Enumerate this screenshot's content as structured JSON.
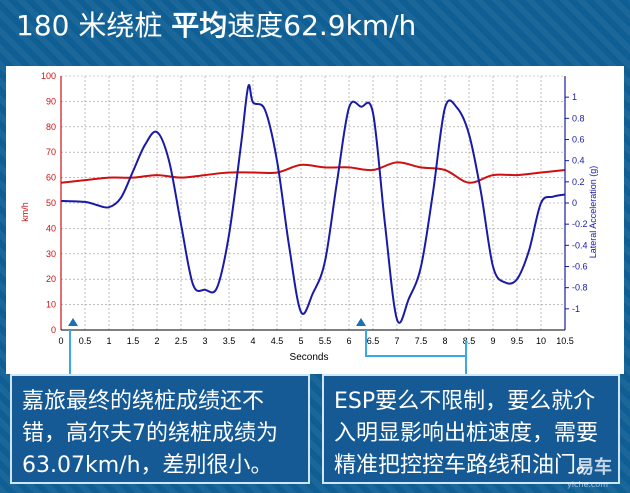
{
  "header": {
    "title_part1": "180 米绕桩 ",
    "title_bold": "平均",
    "title_part2": "速度62.9km/h"
  },
  "chart_data": {
    "type": "line",
    "xlabel": "Seconds",
    "ylabel_left": "km/h",
    "ylabel_right": "Lateral Acceleration (g)",
    "xlim": [
      0,
      10.5
    ],
    "ylim_left": [
      0,
      100
    ],
    "ylim_right": [
      -1.2,
      1.2
    ],
    "x_ticks": [
      "0",
      "0.5",
      "1",
      "1.5",
      "2",
      "2.5",
      "3",
      "3.5",
      "4",
      "4.5",
      "5",
      "5.5",
      "6",
      "6.5",
      "7",
      "7.5",
      "8",
      "8.5",
      "9",
      "9.5",
      "10",
      "10.5"
    ],
    "y_ticks_left": [
      "0",
      "10",
      "20",
      "30",
      "40",
      "50",
      "60",
      "70",
      "80",
      "90",
      "100"
    ],
    "y_ticks_right": [
      "-1",
      "-0.8",
      "-0.6",
      "-0.4",
      "-0.2",
      "0",
      "0.2",
      "0.4",
      "0.6",
      "0.8",
      "1"
    ],
    "grid": true,
    "series": [
      {
        "axis": "left",
        "color": "#cc1111",
        "x": [
          0,
          0.5,
          1,
          1.5,
          2,
          2.5,
          3,
          3.5,
          4,
          4.5,
          5,
          5.5,
          6,
          6.5,
          7,
          7.5,
          8,
          8.5,
          9,
          9.5,
          10,
          10.5
        ],
        "y": [
          58,
          59,
          60,
          60,
          61,
          60,
          61,
          62,
          62,
          62,
          65,
          64,
          64,
          63,
          66,
          64,
          63,
          58,
          61,
          61,
          62,
          63
        ]
      },
      {
        "axis": "right",
        "color": "#1a1aa8",
        "x": [
          0,
          0.5,
          0.75,
          1,
          1.25,
          1.5,
          1.75,
          2,
          2.25,
          2.5,
          2.75,
          3,
          3.25,
          3.5,
          3.75,
          3.9,
          4,
          4.25,
          4.5,
          4.75,
          5,
          5.25,
          5.5,
          5.75,
          6,
          6.25,
          6.5,
          6.75,
          7,
          7.25,
          7.5,
          7.75,
          8,
          8.25,
          8.5,
          8.75,
          9,
          9.25,
          9.5,
          9.75,
          10,
          10.25,
          10.5
        ],
        "y": [
          0.02,
          0.01,
          -0.02,
          -0.04,
          0.05,
          0.3,
          0.55,
          0.67,
          0.4,
          -0.2,
          -0.77,
          -0.82,
          -0.8,
          -0.3,
          0.55,
          1.1,
          0.95,
          0.88,
          0.4,
          -0.4,
          -1.03,
          -0.85,
          -0.55,
          0.2,
          0.9,
          0.91,
          0.85,
          -0.2,
          -1.1,
          -0.9,
          -0.6,
          0.1,
          0.9,
          0.9,
          0.65,
          0.1,
          -0.6,
          -0.75,
          -0.72,
          -0.45,
          0.0,
          0.06,
          0.08
        ]
      }
    ]
  },
  "caption_left": {
    "text": "嘉旅最终的绕桩成绩还不错，高尔夫7的绕桩成绩为63.07km/h，差别很小。"
  },
  "caption_right": {
    "text": "ESP要么不限制，要么就介入明显影响出桩速度，需要精准把控控车路线和油门。"
  },
  "logo": {
    "text": "易车",
    "sub": "yiche.com"
  }
}
